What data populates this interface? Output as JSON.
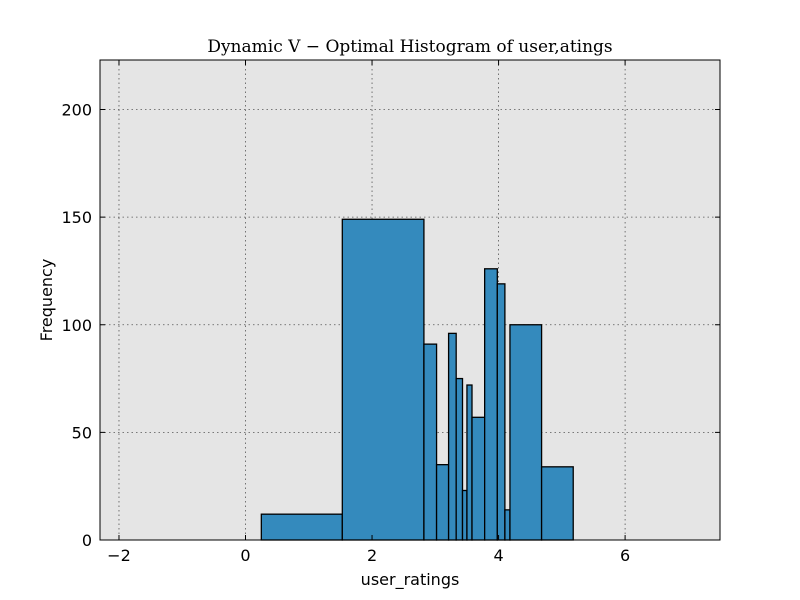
{
  "chart_data": {
    "type": "bar",
    "title": "Dynamic V − Optimal Histogram of user,atings",
    "xlabel": "user_ratings",
    "ylabel": "Frequency",
    "xlim": [
      -2.3,
      7.5
    ],
    "ylim": [
      0,
      223
    ],
    "grid": true,
    "xticks": [
      -2,
      0,
      2,
      4,
      6
    ],
    "xtick_labels": [
      "−2",
      "0",
      "2",
      "4",
      "6"
    ],
    "yticks": [
      0,
      50,
      100,
      150,
      200
    ],
    "ytick_labels": [
      "0",
      "50",
      "100",
      "150",
      "200"
    ],
    "color": "#348ABD",
    "background": "#E5E5E5",
    "bins": [
      {
        "x0": 0.25,
        "x1": 1.53,
        "count": 12
      },
      {
        "x0": 1.53,
        "x1": 2.82,
        "count": 149
      },
      {
        "x0": 2.82,
        "x1": 3.02,
        "count": 91
      },
      {
        "x0": 3.02,
        "x1": 3.21,
        "count": 35
      },
      {
        "x0": 3.21,
        "x1": 3.33,
        "count": 96
      },
      {
        "x0": 3.33,
        "x1": 3.43,
        "count": 75
      },
      {
        "x0": 3.43,
        "x1": 3.5,
        "count": 23
      },
      {
        "x0": 3.5,
        "x1": 3.58,
        "count": 72
      },
      {
        "x0": 3.58,
        "x1": 3.78,
        "count": 57
      },
      {
        "x0": 3.78,
        "x1": 3.98,
        "count": 126
      },
      {
        "x0": 3.98,
        "x1": 4.1,
        "count": 119
      },
      {
        "x0": 4.1,
        "x1": 4.18,
        "count": 14
      },
      {
        "x0": 4.18,
        "x1": 4.68,
        "count": 100
      },
      {
        "x0": 4.68,
        "x1": 5.18,
        "count": 34
      }
    ]
  }
}
